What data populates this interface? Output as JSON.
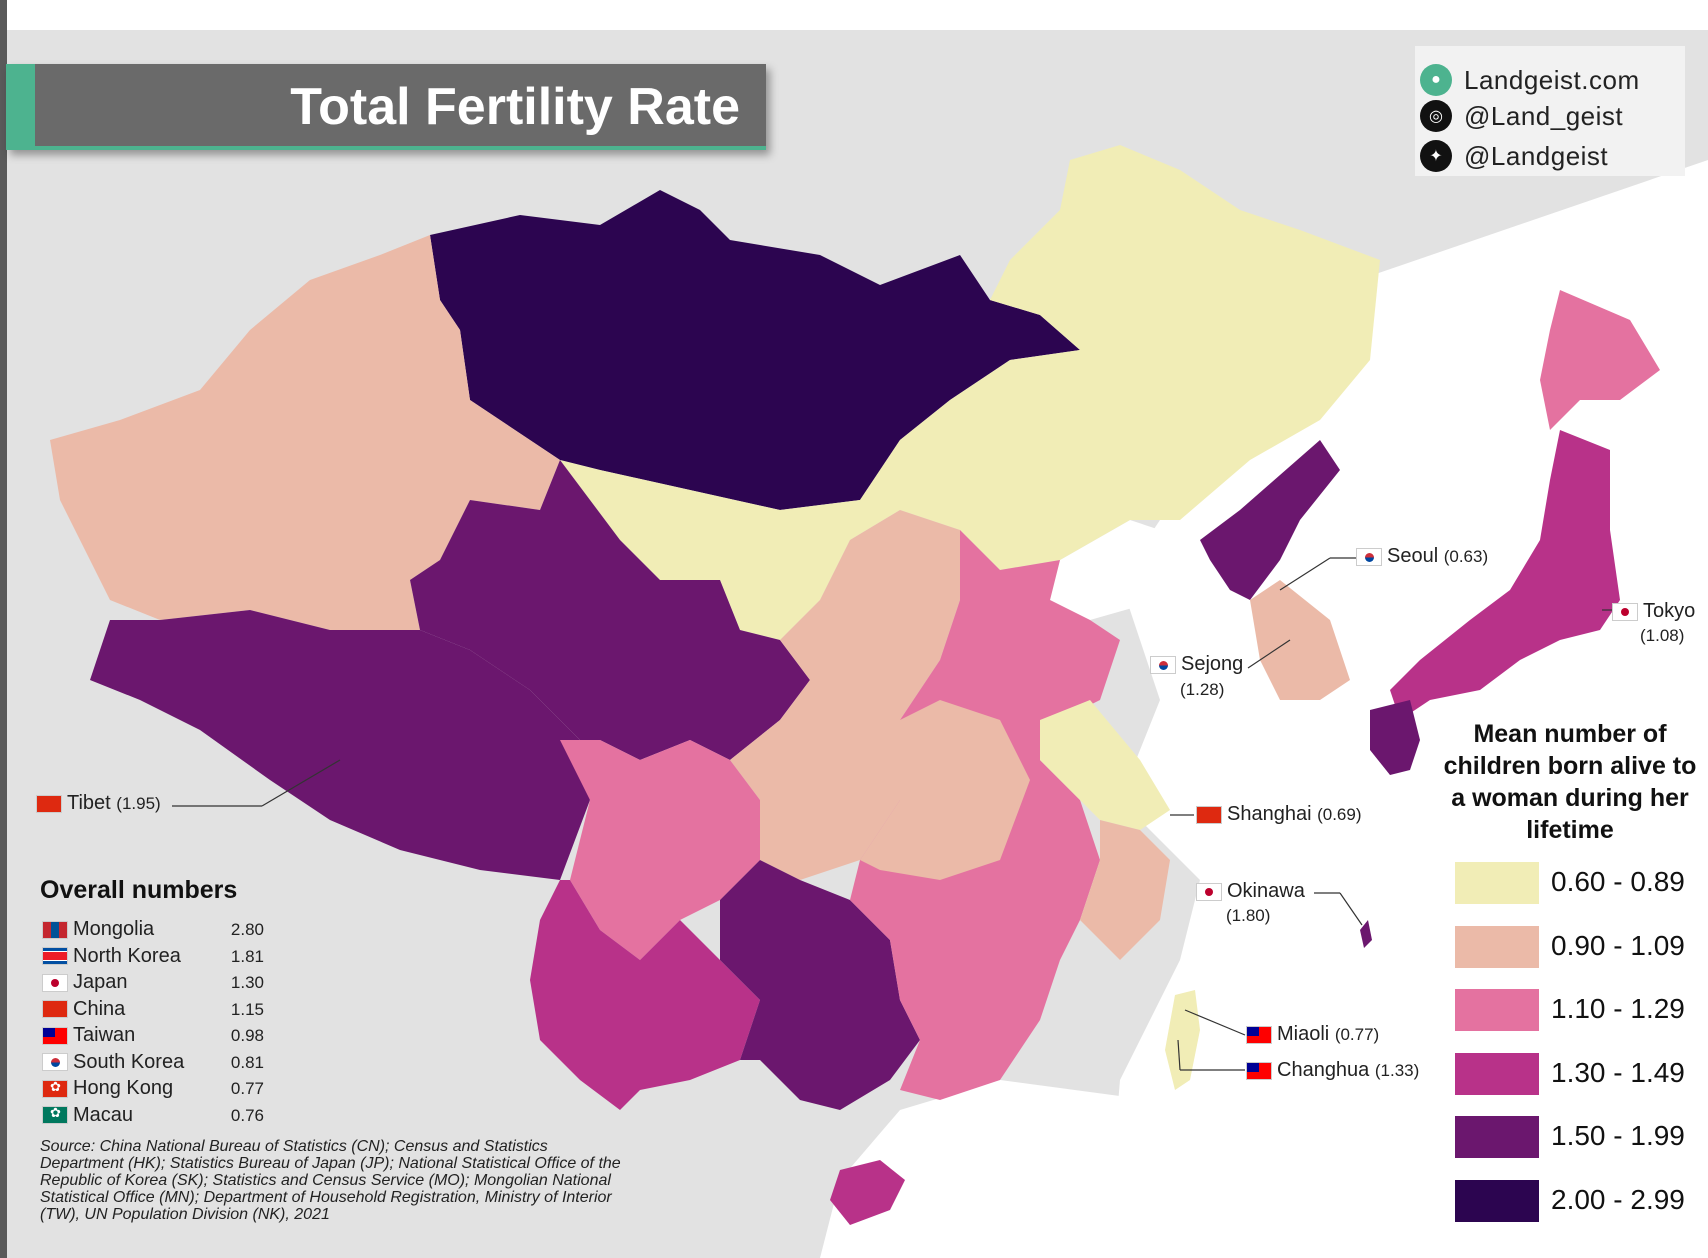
{
  "title": "Total Fertility Rate",
  "social": {
    "website": "Landgeist.com",
    "instagram": "@Land_geist",
    "twitter": "@Landgeist",
    "icons": [
      "globe-icon",
      "instagram-icon",
      "twitter-icon"
    ]
  },
  "legend": {
    "title": "Mean number of children born alive to a woman during her lifetime",
    "bins": [
      {
        "label": "0.60 - 0.89",
        "color": "#f1edb6"
      },
      {
        "label": "0.90 - 1.09",
        "color": "#ebbaa8"
      },
      {
        "label": "1.10 - 1.29",
        "color": "#e472a0"
      },
      {
        "label": "1.30 - 1.49",
        "color": "#b83289"
      },
      {
        "label": "1.50 - 1.99",
        "color": "#6b176e"
      },
      {
        "label": "2.00 - 2.99",
        "color": "#2c0550"
      }
    ]
  },
  "overall": {
    "title": "Overall numbers",
    "rows": [
      {
        "name": "Mongolia",
        "value": "2.80",
        "flag": "mn"
      },
      {
        "name": "North Korea",
        "value": "1.81",
        "flag": "nk"
      },
      {
        "name": "Japan",
        "value": "1.30",
        "flag": "jp"
      },
      {
        "name": "China",
        "value": "1.15",
        "flag": "cn"
      },
      {
        "name": "Taiwan",
        "value": "0.98",
        "flag": "tw"
      },
      {
        "name": "South Korea",
        "value": "0.81",
        "flag": "kr"
      },
      {
        "name": "Hong Kong",
        "value": "0.77",
        "flag": "hk"
      },
      {
        "name": "Macau",
        "value": "0.76",
        "flag": "mo"
      }
    ]
  },
  "callouts": {
    "tibet": {
      "name": "Tibet",
      "value": "(1.95)"
    },
    "seoul": {
      "name": "Seoul",
      "value": "(0.63)"
    },
    "sejong": {
      "name": "Sejong",
      "value": "(1.28)"
    },
    "tokyo": {
      "name": "Tokyo",
      "value": "(1.08)"
    },
    "shanghai": {
      "name": "Shanghai",
      "value": "(0.69)"
    },
    "okinawa": {
      "name": "Okinawa",
      "value": "(1.80)"
    },
    "miaoli": {
      "name": "Miaoli",
      "value": "(0.77)"
    },
    "changhua": {
      "name": "Changhua",
      "value": "(1.33)"
    }
  },
  "source": "Source: China National Bureau of Statistics (CN); Census and Statistics Department (HK); Statistics Bureau of Japan (JP); National Statistical Office of the Republic of Korea (SK); Statistics and Census Service (MO); Mongolian National Statistical Office (MN); Department of Household Registration, Ministry of Interior (TW), UN Population Division (NK), 2021"
}
